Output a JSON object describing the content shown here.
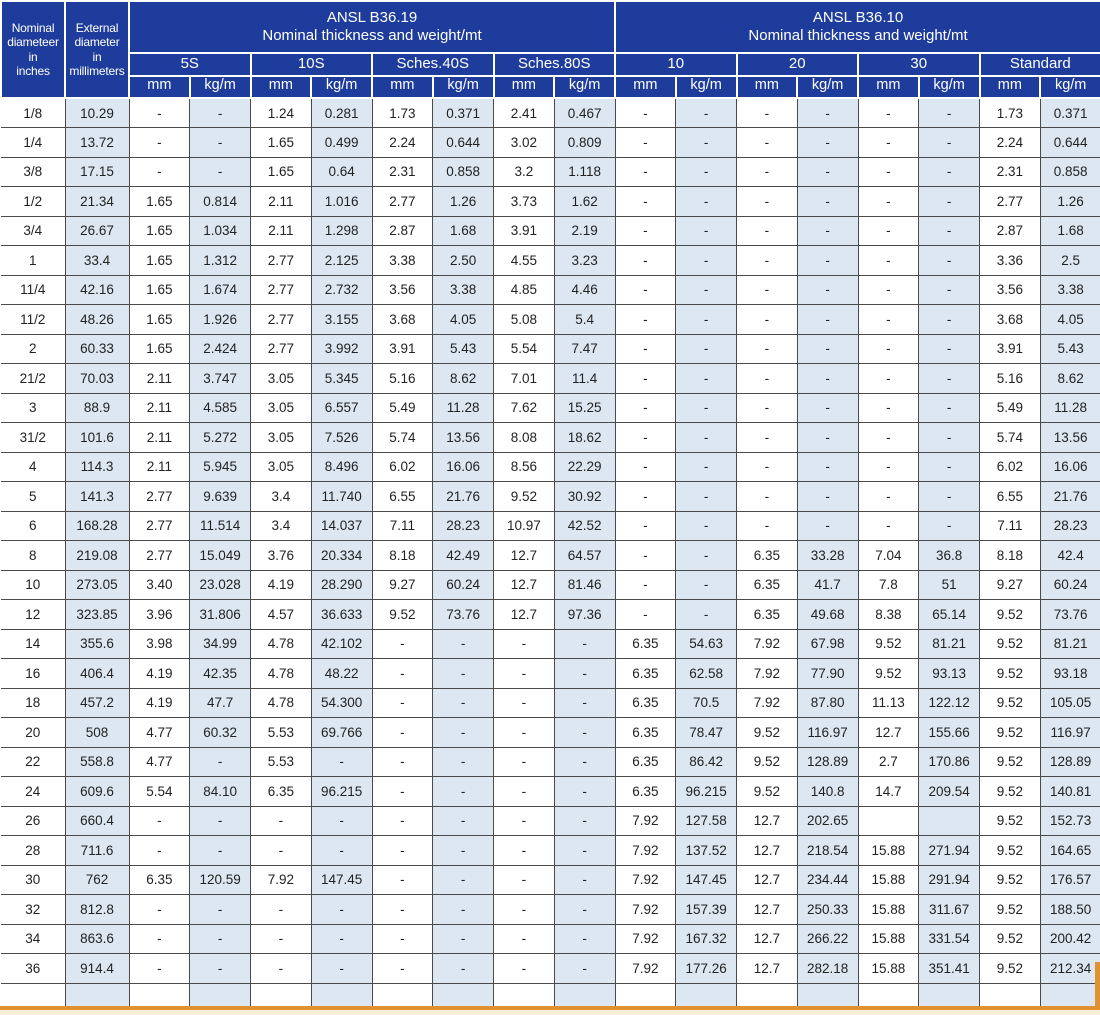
{
  "colors": {
    "header_bg": "#1e3c9b",
    "shaded_cell": "#dce7f2",
    "border": "#4a4a4a",
    "accent_line": "#e09132",
    "footer_strip": "#f7efd8"
  },
  "table": {
    "corner_headers": [
      {
        "text": "Nominal\ndiameteer\nin\ninches"
      },
      {
        "text": "External\ndiameter\nin\nmillimeters"
      }
    ],
    "groups": [
      {
        "title": "ANSL B36.19",
        "subtitle": "Nominal thickness and weight/mt",
        "columns": [
          "5S",
          "10S",
          "Sches.40S",
          "Sches.80S"
        ]
      },
      {
        "title": "ANSL B36.10",
        "subtitle": "Nominal thickness and weight/mt",
        "columns": [
          "10",
          "20",
          "30",
          "Standard"
        ]
      }
    ],
    "unit_labels": [
      "mm",
      "kg/m"
    ],
    "rows": [
      [
        "1/8",
        "10.29",
        "-",
        "-",
        "1.24",
        "0.281",
        "1.73",
        "0.371",
        "2.41",
        "0.467",
        "-",
        "-",
        "-",
        "-",
        "-",
        "-",
        "1.73",
        "0.371"
      ],
      [
        "1/4",
        "13.72",
        "-",
        "-",
        "1.65",
        "0.499",
        "2.24",
        "0.644",
        "3.02",
        "0.809",
        "-",
        "-",
        "-",
        "-",
        "-",
        "-",
        "2.24",
        "0.644"
      ],
      [
        "3/8",
        "17.15",
        "-",
        "-",
        "1.65",
        "0.64",
        "2.31",
        "0.858",
        "3.2",
        "1.118",
        "-",
        "-",
        "-",
        "-",
        "-",
        "-",
        "2.31",
        "0.858"
      ],
      [
        "1/2",
        "21.34",
        "1.65",
        "0.814",
        "2.11",
        "1.016",
        "2.77",
        "1.26",
        "3.73",
        "1.62",
        "-",
        "-",
        "-",
        "-",
        "-",
        "-",
        "2.77",
        "1.26"
      ],
      [
        "3/4",
        "26.67",
        "1.65",
        "1.034",
        "2.11",
        "1.298",
        "2.87",
        "1.68",
        "3.91",
        "2.19",
        "-",
        "-",
        "-",
        "-",
        "-",
        "-",
        "2.87",
        "1.68"
      ],
      [
        "1",
        "33.4",
        "1.65",
        "1.312",
        "2.77",
        "2.125",
        "3.38",
        "2.50",
        "4.55",
        "3.23",
        "-",
        "-",
        "-",
        "-",
        "-",
        "-",
        "3.36",
        "2.5"
      ],
      [
        "11/4",
        "42.16",
        "1.65",
        "1.674",
        "2.77",
        "2.732",
        "3.56",
        "3.38",
        "4.85",
        "4.46",
        "-",
        "-",
        "-",
        "-",
        "-",
        "-",
        "3.56",
        "3.38"
      ],
      [
        "11/2",
        "48.26",
        "1.65",
        "1.926",
        "2.77",
        "3.155",
        "3.68",
        "4.05",
        "5.08",
        "5.4",
        "-",
        "-",
        "-",
        "-",
        "-",
        "-",
        "3.68",
        "4.05"
      ],
      [
        "2",
        "60.33",
        "1.65",
        "2.424",
        "2.77",
        "3.992",
        "3.91",
        "5.43",
        "5.54",
        "7.47",
        "-",
        "-",
        "-",
        "-",
        "-",
        "-",
        "3.91",
        "5.43"
      ],
      [
        "21/2",
        "70.03",
        "2.11",
        "3.747",
        "3.05",
        "5.345",
        "5.16",
        "8.62",
        "7.01",
        "11.4",
        "-",
        "-",
        "-",
        "-",
        "-",
        "-",
        "5.16",
        "8.62"
      ],
      [
        "3",
        "88.9",
        "2.11",
        "4.585",
        "3.05",
        "6.557",
        "5.49",
        "11.28",
        "7.62",
        "15.25",
        "-",
        "-",
        "-",
        "-",
        "-",
        "-",
        "5.49",
        "11.28"
      ],
      [
        "31/2",
        "101.6",
        "2.11",
        "5.272",
        "3.05",
        "7.526",
        "5.74",
        "13.56",
        "8.08",
        "18.62",
        "-",
        "-",
        "-",
        "-",
        "-",
        "-",
        "5.74",
        "13.56"
      ],
      [
        "4",
        "114.3",
        "2.11",
        "5.945",
        "3.05",
        "8.496",
        "6.02",
        "16.06",
        "8.56",
        "22.29",
        "-",
        "-",
        "-",
        "-",
        "-",
        "-",
        "6.02",
        "16.06"
      ],
      [
        "5",
        "141.3",
        "2.77",
        "9.639",
        "3.4",
        "11.740",
        "6.55",
        "21.76",
        "9.52",
        "30.92",
        "-",
        "-",
        "-",
        "-",
        "-",
        "-",
        "6.55",
        "21.76"
      ],
      [
        "6",
        "168.28",
        "2.77",
        "11.514",
        "3.4",
        "14.037",
        "7.11",
        "28.23",
        "10.97",
        "42.52",
        "-",
        "-",
        "-",
        "-",
        "-",
        "-",
        "7.11",
        "28.23"
      ],
      [
        "8",
        "219.08",
        "2.77",
        "15.049",
        "3.76",
        "20.334",
        "8.18",
        "42.49",
        "12.7",
        "64.57",
        "-",
        "-",
        "6.35",
        "33.28",
        "7.04",
        "36.8",
        "8.18",
        "42.4"
      ],
      [
        "10",
        "273.05",
        "3.40",
        "23.028",
        "4.19",
        "28.290",
        "9.27",
        "60.24",
        "12.7",
        "81.46",
        "-",
        "-",
        "6.35",
        "41.7",
        "7.8",
        "51",
        "9.27",
        "60.24"
      ],
      [
        "12",
        "323.85",
        "3.96",
        "31.806",
        "4.57",
        "36.633",
        "9.52",
        "73.76",
        "12.7",
        "97.36",
        "-",
        "-",
        "6.35",
        "49.68",
        "8.38",
        "65.14",
        "9.52",
        "73.76"
      ],
      [
        "14",
        "355.6",
        "3.98",
        "34.99",
        "4.78",
        "42.102",
        "-",
        "-",
        "-",
        "-",
        "6.35",
        "54.63",
        "7.92",
        "67.98",
        "9.52",
        "81.21",
        "9.52",
        "81.21"
      ],
      [
        "16",
        "406.4",
        "4.19",
        "42.35",
        "4.78",
        "48.22",
        "-",
        "-",
        "-",
        "-",
        "6.35",
        "62.58",
        "7.92",
        "77.90",
        "9.52",
        "93.13",
        "9.52",
        "93.18"
      ],
      [
        "18",
        "457.2",
        "4.19",
        "47.7",
        "4.78",
        "54.300",
        "-",
        "-",
        "-",
        "-",
        "6.35",
        "70.5",
        "7.92",
        "87.80",
        "11.13",
        "122.12",
        "9.52",
        "105.05"
      ],
      [
        "20",
        "508",
        "4.77",
        "60.32",
        "5.53",
        "69.766",
        "-",
        "-",
        "-",
        "-",
        "6.35",
        "78.47",
        "9.52",
        "116.97",
        "12.7",
        "155.66",
        "9.52",
        "116.97"
      ],
      [
        "22",
        "558.8",
        "4.77",
        "-",
        "5.53",
        "-",
        "-",
        "-",
        "-",
        "-",
        "6.35",
        "86.42",
        "9.52",
        "128.89",
        "2.7",
        "170.86",
        "9.52",
        "128.89"
      ],
      [
        "24",
        "609.6",
        "5.54",
        "84.10",
        "6.35",
        "96.215",
        "-",
        "-",
        "-",
        "-",
        "6.35",
        "96.215",
        "9.52",
        "140.8",
        "14.7",
        "209.54",
        "9.52",
        "140.81"
      ],
      [
        "26",
        "660.4",
        "-",
        "-",
        "-",
        "-",
        "-",
        "-",
        "-",
        "-",
        "7.92",
        "127.58",
        "12.7",
        "202.65",
        "",
        "",
        "9.52",
        "152.73"
      ],
      [
        "28",
        "711.6",
        "-",
        "-",
        "-",
        "-",
        "-",
        "-",
        "-",
        "-",
        "7.92",
        "137.52",
        "12.7",
        "218.54",
        "15.88",
        "271.94",
        "9.52",
        "164.65"
      ],
      [
        "30",
        "762",
        "6.35",
        "120.59",
        "7.92",
        "147.45",
        "-",
        "-",
        "-",
        "-",
        "7.92",
        "147.45",
        "12.7",
        "234.44",
        "15.88",
        "291.94",
        "9.52",
        "176.57"
      ],
      [
        "32",
        "812.8",
        "-",
        "-",
        "-",
        "-",
        "-",
        "-",
        "-",
        "-",
        "7.92",
        "157.39",
        "12.7",
        "250.33",
        "15.88",
        "311.67",
        "9.52",
        "188.50"
      ],
      [
        "34",
        "863.6",
        "-",
        "-",
        "-",
        "-",
        "-",
        "-",
        "-",
        "-",
        "7.92",
        "167.32",
        "12.7",
        "266.22",
        "15.88",
        "331.54",
        "9.52",
        "200.42"
      ],
      [
        "36",
        "914.4",
        "-",
        "-",
        "-",
        "-",
        "-",
        "-",
        "-",
        "-",
        "7.92",
        "177.26",
        "12.7",
        "282.18",
        "15.88",
        "351.41",
        "9.52",
        "212.34"
      ]
    ]
  }
}
